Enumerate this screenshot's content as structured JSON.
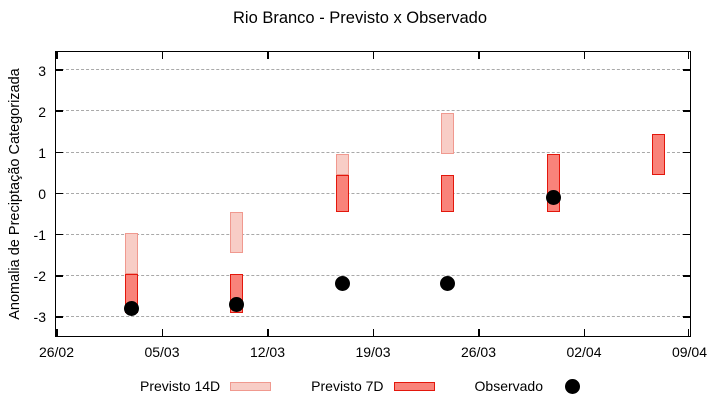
{
  "chart_data": {
    "type": "bar",
    "title": "Rio Branco - Previsto x Observado",
    "ylabel": "Anomalia de Preciptação Categorizada",
    "xlabel": "",
    "x_tick_labels": [
      "26/02",
      "05/03",
      "12/03",
      "19/03",
      "26/03",
      "02/04",
      "09/04"
    ],
    "x_tick_days": [
      0,
      7,
      14,
      21,
      28,
      35,
      42
    ],
    "xlim_days": [
      0,
      42
    ],
    "y_ticks": [
      3,
      2,
      1,
      0,
      -1,
      -2,
      -3
    ],
    "ylim": [
      -3.44,
      3.44
    ],
    "grid": "horizontal-dashed",
    "grid_color": "#a9a9a9",
    "legend_position": "bottom-center",
    "cluster_days": [
      5,
      12,
      19,
      26,
      33,
      40
    ],
    "series": [
      {
        "name": "Previsto 14D",
        "type": "range-bar",
        "fill": "#f8cdc6",
        "border": "#f0998f",
        "ranges": [
          [
            -1.95,
            -0.95
          ],
          [
            -1.45,
            -0.45
          ],
          [
            0.45,
            0.95
          ],
          [
            0.95,
            1.95
          ],
          null,
          null
        ]
      },
      {
        "name": "Previsto 7D",
        "type": "range-bar",
        "fill": "#f9837a",
        "border": "#e3170c",
        "ranges": [
          [
            -2.9,
            -1.95
          ],
          [
            -2.9,
            -1.95
          ],
          [
            -0.45,
            0.45
          ],
          [
            -0.45,
            0.45
          ],
          [
            -0.45,
            0.95
          ],
          [
            0.45,
            1.45
          ]
        ]
      },
      {
        "name": "Observado",
        "type": "scatter",
        "color": "#000000",
        "values": [
          -2.8,
          -2.7,
          -2.2,
          -2.2,
          -0.1,
          null
        ]
      }
    ]
  }
}
